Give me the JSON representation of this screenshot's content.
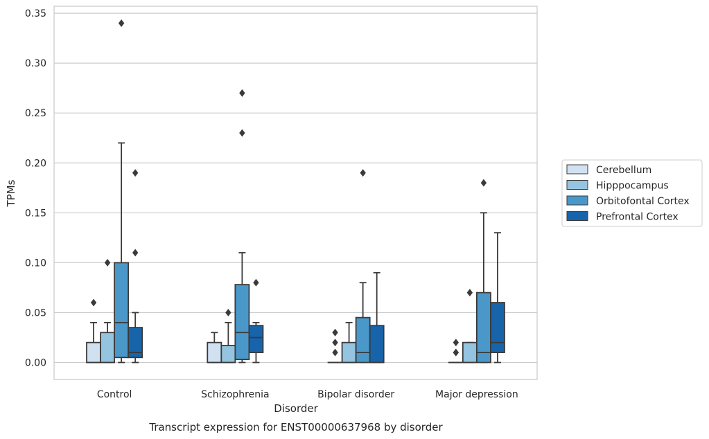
{
  "caption": "Transcript expression for ENST00000637968 by disorder",
  "chart_data": {
    "type": "box",
    "title": "",
    "xlabel": "Disorder",
    "ylabel": "TPMs",
    "ylim": [
      -0.017,
      0.357
    ],
    "yticks": [
      "0.00",
      "0.05",
      "0.10",
      "0.15",
      "0.20",
      "0.25",
      "0.30",
      "0.35"
    ],
    "ytick_values": [
      0,
      0.05,
      0.1,
      0.15,
      0.2,
      0.25,
      0.3,
      0.35
    ],
    "grid": "horizontal",
    "legend_position": "right",
    "categories": [
      "Control",
      "Schizophrenia",
      "Bipolar disorder",
      "Major depression"
    ],
    "series": [
      {
        "name": "Cerebellum",
        "color": "#d0e1f2",
        "boxes": [
          {
            "q1": 0.0,
            "median": 0.0,
            "q3": 0.02,
            "whisker_low": 0.0,
            "whisker_high": 0.04,
            "outliers": [
              0.06
            ]
          },
          {
            "q1": 0.0,
            "median": 0.0,
            "q3": 0.02,
            "whisker_low": 0.0,
            "whisker_high": 0.03,
            "outliers": []
          },
          {
            "q1": 0.0,
            "median": 0.0,
            "q3": 0.0,
            "whisker_low": 0.0,
            "whisker_high": 0.0,
            "outliers": [
              0.01,
              0.02,
              0.03
            ]
          },
          {
            "q1": 0.0,
            "median": 0.0,
            "q3": 0.0,
            "whisker_low": 0.0,
            "whisker_high": 0.0,
            "outliers": [
              0.01,
              0.01,
              0.02
            ]
          }
        ]
      },
      {
        "name": "Hipppocampus",
        "color": "#94c4df",
        "boxes": [
          {
            "q1": 0.0,
            "median": 0.0,
            "q3": 0.03,
            "whisker_low": 0.0,
            "whisker_high": 0.04,
            "outliers": [
              0.1
            ]
          },
          {
            "q1": 0.0,
            "median": 0.0,
            "q3": 0.017,
            "whisker_low": 0.0,
            "whisker_high": 0.04,
            "outliers": [
              0.05
            ]
          },
          {
            "q1": 0.0,
            "median": 0.0,
            "q3": 0.02,
            "whisker_low": 0.0,
            "whisker_high": 0.04,
            "outliers": []
          },
          {
            "q1": 0.0,
            "median": 0.0,
            "q3": 0.02,
            "whisker_low": 0.0,
            "whisker_high": 0.02,
            "outliers": [
              0.07
            ]
          }
        ]
      },
      {
        "name": "Orbitofontal Cortex",
        "color": "#4a98c9",
        "boxes": [
          {
            "q1": 0.005,
            "median": 0.04,
            "q3": 0.1,
            "whisker_low": 0.0,
            "whisker_high": 0.22,
            "outliers": [
              0.34
            ]
          },
          {
            "q1": 0.003,
            "median": 0.03,
            "q3": 0.078,
            "whisker_low": 0.0,
            "whisker_high": 0.11,
            "outliers": [
              0.23,
              0.27
            ]
          },
          {
            "q1": 0.0,
            "median": 0.01,
            "q3": 0.045,
            "whisker_low": 0.0,
            "whisker_high": 0.08,
            "outliers": [
              0.19
            ]
          },
          {
            "q1": 0.0,
            "median": 0.01,
            "q3": 0.07,
            "whisker_low": 0.0,
            "whisker_high": 0.15,
            "outliers": [
              0.18
            ]
          }
        ]
      },
      {
        "name": "Prefrontal Cortex",
        "color": "#1764ab",
        "boxes": [
          {
            "q1": 0.005,
            "median": 0.01,
            "q3": 0.035,
            "whisker_low": 0.0,
            "whisker_high": 0.05,
            "outliers": [
              0.11,
              0.19
            ]
          },
          {
            "q1": 0.01,
            "median": 0.025,
            "q3": 0.037,
            "whisker_low": 0.0,
            "whisker_high": 0.04,
            "outliers": [
              0.08
            ]
          },
          {
            "q1": 0.0,
            "median": 0.0,
            "q3": 0.037,
            "whisker_low": 0.0,
            "whisker_high": 0.09,
            "outliers": []
          },
          {
            "q1": 0.01,
            "median": 0.02,
            "q3": 0.06,
            "whisker_low": 0.0,
            "whisker_high": 0.13,
            "outliers": []
          }
        ]
      }
    ]
  }
}
